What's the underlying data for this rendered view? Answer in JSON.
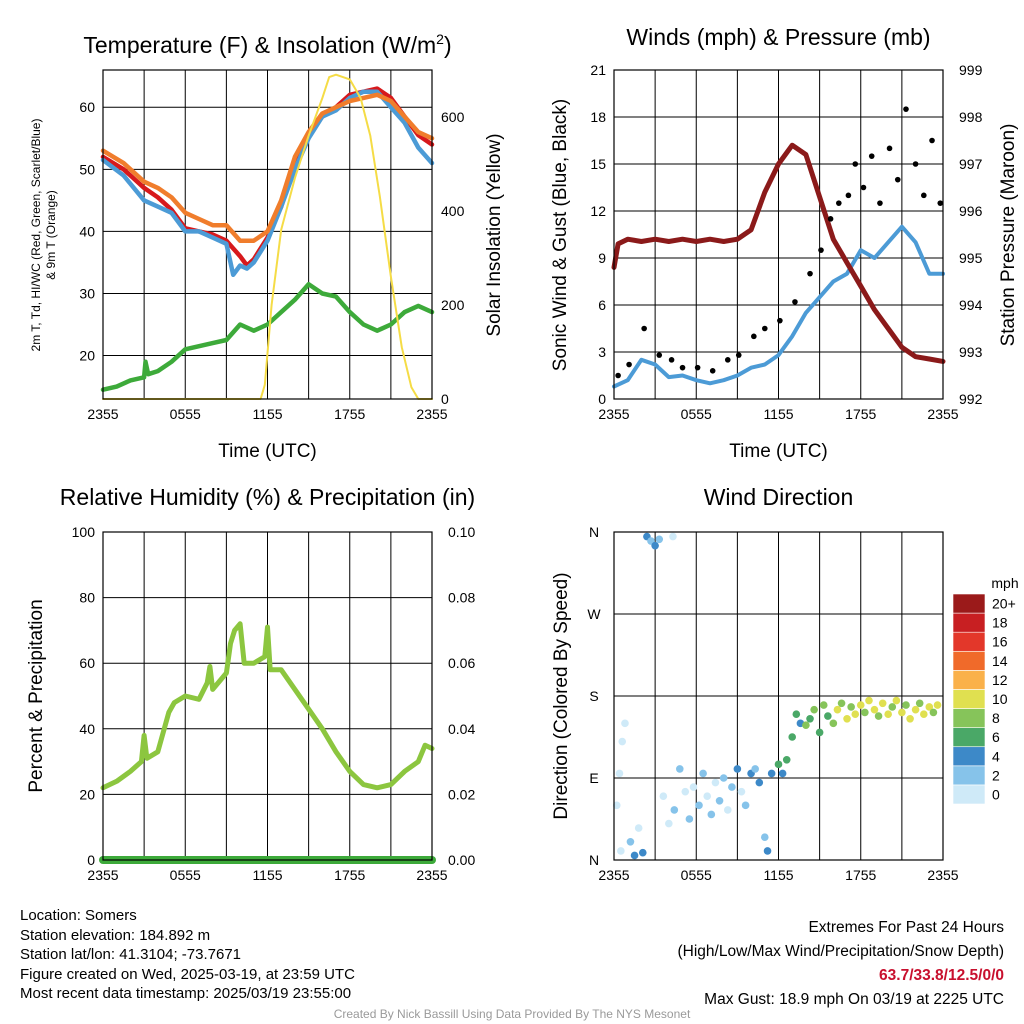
{
  "chart_data": [
    {
      "type": "line",
      "title": "Temperature (F) & Insolation (W/m²)",
      "title_parts": {
        "main": "Temperature (F) & Insolation (W/m",
        "sup": "2",
        "end": ")"
      },
      "xlabel": "Time (UTC)",
      "ylabel_lines": [
        "2m T, Td, HI/WC (Red, Green, Scarlet/Blue)",
        "& 9m T (Orange)"
      ],
      "y2label": "Solar Insolation (Yellow)",
      "x_ticks": [
        "2355",
        "0555",
        "1155",
        "1755",
        "2355"
      ],
      "ylim": [
        13,
        66
      ],
      "y_ticks": [
        20,
        30,
        40,
        50,
        60
      ],
      "y2lim": [
        0,
        700
      ],
      "y2_ticks": [
        0,
        200,
        400,
        600
      ],
      "series": [
        {
          "color": "#d7191c",
          "axis": "left",
          "x": [
            0,
            1.5,
            3,
            4,
            5,
            6,
            7,
            8,
            9,
            10,
            10.5,
            11,
            12,
            13,
            14,
            15,
            16,
            17,
            18,
            19,
            20,
            21,
            22,
            23,
            24
          ],
          "y": [
            52,
            50,
            47,
            45.5,
            43.5,
            40.5,
            40,
            39.5,
            38.5,
            36,
            34.5,
            35.5,
            39,
            44,
            51,
            55.5,
            58.5,
            60,
            62,
            62.5,
            63,
            61.5,
            58.5,
            55.5,
            54
          ]
        },
        {
          "color": "#4c9bd6",
          "axis": "left",
          "x": [
            0,
            1.5,
            3,
            4,
            5,
            6,
            7,
            8,
            9,
            9.5,
            10,
            10.5,
            11,
            12,
            13,
            14,
            15,
            16,
            17,
            18,
            19,
            20,
            21,
            22,
            23,
            24
          ],
          "y": [
            51.5,
            49,
            45,
            44,
            43,
            40,
            40,
            39,
            38,
            33,
            34.5,
            34,
            35,
            38.5,
            44,
            50,
            55,
            58.5,
            59.5,
            61.5,
            62.5,
            62.5,
            60,
            57.5,
            53.5,
            51
          ]
        },
        {
          "color": "#f07d2c",
          "axis": "left",
          "x": [
            0,
            1.5,
            3,
            4,
            5,
            6,
            7,
            8,
            9,
            10,
            11,
            12,
            13,
            14,
            15,
            16,
            17,
            18,
            19,
            20,
            21,
            22,
            23,
            24
          ],
          "y": [
            53,
            51,
            48,
            47,
            45.5,
            43,
            42,
            41,
            41,
            38.5,
            38.5,
            40,
            45,
            52,
            56,
            59,
            60,
            61,
            61.5,
            62,
            61,
            58.5,
            56,
            55
          ]
        },
        {
          "color": "#3daa3a",
          "axis": "left",
          "x": [
            0,
            1,
            2,
            3,
            3.1,
            3.3,
            4,
            5,
            6,
            7,
            8,
            9,
            10,
            11,
            12,
            13,
            14,
            15,
            16,
            17,
            18,
            19,
            20,
            21,
            22,
            23,
            24
          ],
          "y": [
            14.5,
            15,
            16,
            16.5,
            19,
            17,
            17.5,
            19,
            21,
            21.5,
            22,
            22.5,
            25,
            24,
            25,
            27,
            29,
            31.5,
            30,
            29.5,
            27,
            25,
            24,
            25,
            27,
            28,
            27
          ]
        },
        {
          "color": "#f5dc46",
          "axis": "right",
          "x": [
            0,
            11.5,
            11.8,
            12.3,
            13,
            14,
            15,
            16,
            16.5,
            17,
            18,
            18.8,
            19.5,
            20.2,
            21,
            21.8,
            22.5,
            23,
            24
          ],
          "y": [
            0,
            0,
            30,
            200,
            360,
            470,
            560,
            640,
            685,
            690,
            680,
            640,
            560,
            430,
            260,
            110,
            25,
            0,
            0
          ]
        }
      ]
    },
    {
      "type": "line",
      "title": "Winds (mph) & Pressure (mb)",
      "xlabel": "Time (UTC)",
      "ylabel": "Sonic Wind & Gust (Blue, Black)",
      "y2label": "Station Pressure (Maroon)",
      "x_ticks": [
        "2355",
        "0555",
        "1155",
        "1755",
        "2355"
      ],
      "ylim": [
        0,
        21
      ],
      "y_ticks": [
        0,
        3,
        6,
        9,
        12,
        15,
        18,
        21
      ],
      "y2lim": [
        992,
        999
      ],
      "y2_ticks": [
        992,
        993,
        994,
        995,
        996,
        997,
        998,
        999
      ],
      "series": [
        {
          "color": "#4c9bd6",
          "axis": "left",
          "x": [
            0,
            1,
            2,
            3,
            4,
            5,
            6,
            7,
            8,
            9,
            10,
            11,
            12,
            13,
            14,
            15,
            16,
            17,
            18,
            19,
            20,
            21,
            22,
            23,
            24
          ],
          "y": [
            0.8,
            1.2,
            2.5,
            2.2,
            1.4,
            1.5,
            1.2,
            1,
            1.2,
            1.5,
            2,
            2.2,
            2.8,
            4,
            5.5,
            6.5,
            7.5,
            8,
            9.5,
            9,
            10,
            11,
            10,
            8,
            8
          ]
        },
        {
          "color": "#8b1a1a",
          "axis": "right",
          "x": [
            0,
            0.3,
            1,
            2,
            3,
            4,
            5,
            6,
            7,
            8,
            9,
            10,
            11,
            12,
            13,
            14,
            15,
            16,
            17,
            18,
            19,
            20,
            21,
            22,
            23,
            24
          ],
          "y": [
            994.8,
            995.3,
            995.4,
            995.35,
            995.4,
            995.35,
            995.4,
            995.35,
            995.4,
            995.35,
            995.4,
            995.6,
            996.4,
            997.0,
            997.4,
            997.2,
            996.3,
            995.4,
            994.9,
            994.4,
            993.9,
            993.5,
            993.1,
            992.9,
            992.85,
            992.8
          ]
        }
      ],
      "gust_points": {
        "color": "#000000",
        "x": [
          0.3,
          1.1,
          2.2,
          3.3,
          4.2,
          5.0,
          6.1,
          7.2,
          8.3,
          9.1,
          10.2,
          11.0,
          12.1,
          13.2,
          14.3,
          15.1,
          15.8,
          16.4,
          17.1,
          17.6,
          18.2,
          18.8,
          19.4,
          20.1,
          20.7,
          21.3,
          22.0,
          22.6,
          23.2,
          23.8
        ],
        "y": [
          1.5,
          2.2,
          4.5,
          2.8,
          2.5,
          2.0,
          2.0,
          1.8,
          2.5,
          2.8,
          4.0,
          4.5,
          5.0,
          6.2,
          8.0,
          9.5,
          11.5,
          12.5,
          13.0,
          15.0,
          13.5,
          15.5,
          12.5,
          16.0,
          14.0,
          18.5,
          15.0,
          13.0,
          16.5,
          12.5
        ]
      }
    },
    {
      "type": "line",
      "title": "Relative Humidity (%) & Precipitation (in)",
      "ylabel": "Percent & Precipitation",
      "x_ticks": [
        "2355",
        "0555",
        "1155",
        "1755",
        "2355"
      ],
      "ylim": [
        0,
        100
      ],
      "y_ticks": [
        0,
        20,
        40,
        60,
        80,
        100
      ],
      "y2lim": [
        0,
        0.1
      ],
      "y2_ticks": [
        "0.00",
        "0.02",
        "0.04",
        "0.06",
        "0.08",
        "0.10"
      ],
      "series": [
        {
          "color": "#8cc63f",
          "axis": "left",
          "x": [
            0,
            1,
            2,
            2.8,
            3,
            3.2,
            4,
            4.8,
            5.2,
            6,
            7,
            7.6,
            7.8,
            8,
            9,
            9.3,
            9.6,
            10,
            10.3,
            11,
            11.8,
            12,
            12.2,
            13,
            14,
            15,
            16,
            17,
            18,
            19,
            20,
            21,
            22,
            23,
            23.5,
            24
          ],
          "y": [
            22,
            24,
            27,
            30,
            38,
            31,
            33,
            45,
            48,
            50,
            49,
            54,
            59,
            52,
            57,
            66,
            70,
            72,
            60,
            60,
            62,
            71,
            58,
            58,
            52,
            46,
            40,
            33,
            27,
            23,
            22,
            23,
            27,
            30,
            35,
            34
          ]
        },
        {
          "color": "#3daa3a",
          "axis": "right",
          "x": [
            0,
            24
          ],
          "y": [
            0,
            0
          ]
        }
      ]
    },
    {
      "type": "scatter",
      "title": "Wind Direction",
      "ylabel": "Direction (Colored By Speed)",
      "x_ticks": [
        "2355",
        "0555",
        "1155",
        "1755",
        "2355"
      ],
      "y_ticks": [
        "N",
        "E",
        "S",
        "W",
        "N"
      ],
      "ylim": [
        0,
        360
      ],
      "colorbar": {
        "unit": "mph",
        "labels": [
          "0",
          "2",
          "4",
          "6",
          "8",
          "10",
          "12",
          "14",
          "16",
          "18",
          "20+"
        ],
        "colors": [
          "#cfeaf8",
          "#86c3ea",
          "#3d89c8",
          "#4aa867",
          "#86c45a",
          "#e0e050",
          "#fab14a",
          "#f06a2a",
          "#e3372a",
          "#c81f22",
          "#9b1a1a"
        ]
      },
      "points": [
        {
          "x": 0.2,
          "y": 60,
          "s": 0
        },
        {
          "x": 0.4,
          "y": 95,
          "s": 0
        },
        {
          "x": 0.6,
          "y": 130,
          "s": 0
        },
        {
          "x": 0.8,
          "y": 150,
          "s": 0
        },
        {
          "x": 0.5,
          "y": 10,
          "s": 0
        },
        {
          "x": 1.2,
          "y": 20,
          "s": 1
        },
        {
          "x": 1.5,
          "y": 5,
          "s": 2
        },
        {
          "x": 1.8,
          "y": 35,
          "s": 0
        },
        {
          "x": 2.1,
          "y": 8,
          "s": 2
        },
        {
          "x": 2.4,
          "y": 355,
          "s": 2
        },
        {
          "x": 2.7,
          "y": 350,
          "s": 1
        },
        {
          "x": 3.0,
          "y": 345,
          "s": 2
        },
        {
          "x": 3.3,
          "y": 352,
          "s": 1
        },
        {
          "x": 4.3,
          "y": 355,
          "s": 0
        },
        {
          "x": 3.6,
          "y": 70,
          "s": 0
        },
        {
          "x": 4.0,
          "y": 40,
          "s": 0
        },
        {
          "x": 4.4,
          "y": 55,
          "s": 1
        },
        {
          "x": 4.8,
          "y": 100,
          "s": 1
        },
        {
          "x": 5.2,
          "y": 75,
          "s": 0
        },
        {
          "x": 5.5,
          "y": 45,
          "s": 1
        },
        {
          "x": 5.8,
          "y": 80,
          "s": 0
        },
        {
          "x": 6.2,
          "y": 60,
          "s": 1
        },
        {
          "x": 6.5,
          "y": 95,
          "s": 1
        },
        {
          "x": 6.8,
          "y": 70,
          "s": 0
        },
        {
          "x": 7.1,
          "y": 50,
          "s": 1
        },
        {
          "x": 7.4,
          "y": 85,
          "s": 0
        },
        {
          "x": 7.7,
          "y": 65,
          "s": 1
        },
        {
          "x": 8.0,
          "y": 90,
          "s": 1
        },
        {
          "x": 8.3,
          "y": 55,
          "s": 0
        },
        {
          "x": 8.6,
          "y": 80,
          "s": 1
        },
        {
          "x": 9.0,
          "y": 100,
          "s": 2
        },
        {
          "x": 9.3,
          "y": 75,
          "s": 0
        },
        {
          "x": 9.6,
          "y": 60,
          "s": 1
        },
        {
          "x": 10.0,
          "y": 95,
          "s": 2
        },
        {
          "x": 10.3,
          "y": 100,
          "s": 1
        },
        {
          "x": 10.6,
          "y": 85,
          "s": 2
        },
        {
          "x": 11.0,
          "y": 25,
          "s": 1
        },
        {
          "x": 11.2,
          "y": 10,
          "s": 2
        },
        {
          "x": 11.5,
          "y": 95,
          "s": 2
        },
        {
          "x": 12.0,
          "y": 105,
          "s": 3
        },
        {
          "x": 12.3,
          "y": 95,
          "s": 2
        },
        {
          "x": 12.6,
          "y": 110,
          "s": 3
        },
        {
          "x": 13.0,
          "y": 135,
          "s": 3
        },
        {
          "x": 13.3,
          "y": 160,
          "s": 3
        },
        {
          "x": 13.6,
          "y": 150,
          "s": 2
        },
        {
          "x": 14.0,
          "y": 148,
          "s": 4
        },
        {
          "x": 14.3,
          "y": 155,
          "s": 3
        },
        {
          "x": 14.6,
          "y": 165,
          "s": 4
        },
        {
          "x": 15.0,
          "y": 140,
          "s": 3
        },
        {
          "x": 15.3,
          "y": 170,
          "s": 4
        },
        {
          "x": 15.6,
          "y": 158,
          "s": 3
        },
        {
          "x": 16.0,
          "y": 150,
          "s": 4
        },
        {
          "x": 16.3,
          "y": 165,
          "s": 5
        },
        {
          "x": 16.6,
          "y": 172,
          "s": 4
        },
        {
          "x": 17.0,
          "y": 155,
          "s": 5
        },
        {
          "x": 17.3,
          "y": 168,
          "s": 4
        },
        {
          "x": 17.6,
          "y": 160,
          "s": 5
        },
        {
          "x": 18.0,
          "y": 170,
          "s": 5
        },
        {
          "x": 18.3,
          "y": 162,
          "s": 4
        },
        {
          "x": 18.6,
          "y": 175,
          "s": 5
        },
        {
          "x": 19.0,
          "y": 165,
          "s": 5
        },
        {
          "x": 19.3,
          "y": 158,
          "s": 4
        },
        {
          "x": 19.6,
          "y": 172,
          "s": 5
        },
        {
          "x": 20.0,
          "y": 160,
          "s": 5
        },
        {
          "x": 20.3,
          "y": 168,
          "s": 4
        },
        {
          "x": 20.6,
          "y": 175,
          "s": 5
        },
        {
          "x": 21.0,
          "y": 162,
          "s": 5
        },
        {
          "x": 21.3,
          "y": 170,
          "s": 4
        },
        {
          "x": 21.6,
          "y": 155,
          "s": 5
        },
        {
          "x": 22.0,
          "y": 165,
          "s": 5
        },
        {
          "x": 22.3,
          "y": 172,
          "s": 4
        },
        {
          "x": 22.6,
          "y": 160,
          "s": 5
        },
        {
          "x": 23.0,
          "y": 168,
          "s": 5
        },
        {
          "x": 23.3,
          "y": 162,
          "s": 4
        },
        {
          "x": 23.6,
          "y": 170,
          "s": 5
        }
      ]
    }
  ],
  "footer": {
    "location": "Location: Somers",
    "elevation": "Station elevation: 184.892 m",
    "latlon": "Station lat/lon: 41.3104; -73.7671",
    "created": "Figure created on Wed, 2025-03-19, at 23:59 UTC",
    "recent": "Most recent data timestamp: 2025/03/19 23:55:00",
    "extremes_title": "Extremes For Past 24 Hours",
    "extremes_sub": "(High/Low/Max Wind/Precipitation/Snow Depth)",
    "extremes_values": "63.7/33.8/12.5/0/0",
    "max_gust": "Max Gust: 18.9 mph On 03/19 at 2225 UTC",
    "credit": "Created By Nick Bassill Using Data Provided By The NYS Mesonet"
  }
}
